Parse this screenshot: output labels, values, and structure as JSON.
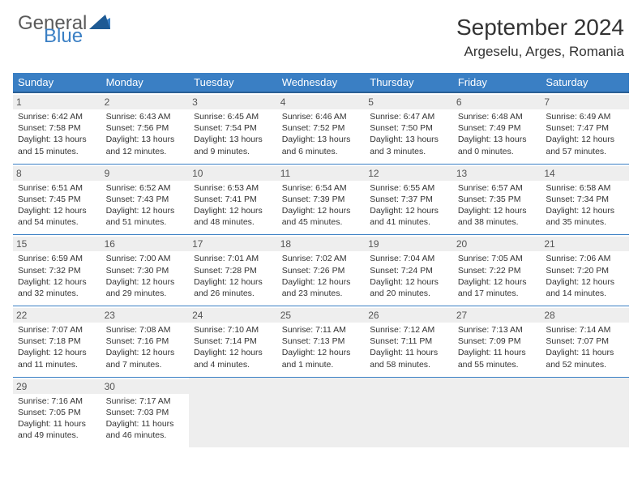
{
  "brand": {
    "line1": "General",
    "line2": "Blue"
  },
  "title": "September 2024",
  "location": "Argeselu, Arges, Romania",
  "colors": {
    "header_bg": "#3a7fc4",
    "header_border": "#2a5f94",
    "daynum_bg": "#eeeeee",
    "text": "#333333",
    "brand_gray": "#5a5a5a",
    "brand_blue": "#3a7fc4"
  },
  "weekdays": [
    "Sunday",
    "Monday",
    "Tuesday",
    "Wednesday",
    "Thursday",
    "Friday",
    "Saturday"
  ],
  "cells": [
    {
      "n": "1",
      "sr": "6:42 AM",
      "ss": "7:58 PM",
      "dl": "13 hours and 15 minutes."
    },
    {
      "n": "2",
      "sr": "6:43 AM",
      "ss": "7:56 PM",
      "dl": "13 hours and 12 minutes."
    },
    {
      "n": "3",
      "sr": "6:45 AM",
      "ss": "7:54 PM",
      "dl": "13 hours and 9 minutes."
    },
    {
      "n": "4",
      "sr": "6:46 AM",
      "ss": "7:52 PM",
      "dl": "13 hours and 6 minutes."
    },
    {
      "n": "5",
      "sr": "6:47 AM",
      "ss": "7:50 PM",
      "dl": "13 hours and 3 minutes."
    },
    {
      "n": "6",
      "sr": "6:48 AM",
      "ss": "7:49 PM",
      "dl": "13 hours and 0 minutes."
    },
    {
      "n": "7",
      "sr": "6:49 AM",
      "ss": "7:47 PM",
      "dl": "12 hours and 57 minutes."
    },
    {
      "n": "8",
      "sr": "6:51 AM",
      "ss": "7:45 PM",
      "dl": "12 hours and 54 minutes."
    },
    {
      "n": "9",
      "sr": "6:52 AM",
      "ss": "7:43 PM",
      "dl": "12 hours and 51 minutes."
    },
    {
      "n": "10",
      "sr": "6:53 AM",
      "ss": "7:41 PM",
      "dl": "12 hours and 48 minutes."
    },
    {
      "n": "11",
      "sr": "6:54 AM",
      "ss": "7:39 PM",
      "dl": "12 hours and 45 minutes."
    },
    {
      "n": "12",
      "sr": "6:55 AM",
      "ss": "7:37 PM",
      "dl": "12 hours and 41 minutes."
    },
    {
      "n": "13",
      "sr": "6:57 AM",
      "ss": "7:35 PM",
      "dl": "12 hours and 38 minutes."
    },
    {
      "n": "14",
      "sr": "6:58 AM",
      "ss": "7:34 PM",
      "dl": "12 hours and 35 minutes."
    },
    {
      "n": "15",
      "sr": "6:59 AM",
      "ss": "7:32 PM",
      "dl": "12 hours and 32 minutes."
    },
    {
      "n": "16",
      "sr": "7:00 AM",
      "ss": "7:30 PM",
      "dl": "12 hours and 29 minutes."
    },
    {
      "n": "17",
      "sr": "7:01 AM",
      "ss": "7:28 PM",
      "dl": "12 hours and 26 minutes."
    },
    {
      "n": "18",
      "sr": "7:02 AM",
      "ss": "7:26 PM",
      "dl": "12 hours and 23 minutes."
    },
    {
      "n": "19",
      "sr": "7:04 AM",
      "ss": "7:24 PM",
      "dl": "12 hours and 20 minutes."
    },
    {
      "n": "20",
      "sr": "7:05 AM",
      "ss": "7:22 PM",
      "dl": "12 hours and 17 minutes."
    },
    {
      "n": "21",
      "sr": "7:06 AM",
      "ss": "7:20 PM",
      "dl": "12 hours and 14 minutes."
    },
    {
      "n": "22",
      "sr": "7:07 AM",
      "ss": "7:18 PM",
      "dl": "12 hours and 11 minutes."
    },
    {
      "n": "23",
      "sr": "7:08 AM",
      "ss": "7:16 PM",
      "dl": "12 hours and 7 minutes."
    },
    {
      "n": "24",
      "sr": "7:10 AM",
      "ss": "7:14 PM",
      "dl": "12 hours and 4 minutes."
    },
    {
      "n": "25",
      "sr": "7:11 AM",
      "ss": "7:13 PM",
      "dl": "12 hours and 1 minute."
    },
    {
      "n": "26",
      "sr": "7:12 AM",
      "ss": "7:11 PM",
      "dl": "11 hours and 58 minutes."
    },
    {
      "n": "27",
      "sr": "7:13 AM",
      "ss": "7:09 PM",
      "dl": "11 hours and 55 minutes."
    },
    {
      "n": "28",
      "sr": "7:14 AM",
      "ss": "7:07 PM",
      "dl": "11 hours and 52 minutes."
    },
    {
      "n": "29",
      "sr": "7:16 AM",
      "ss": "7:05 PM",
      "dl": "11 hours and 49 minutes."
    },
    {
      "n": "30",
      "sr": "7:17 AM",
      "ss": "7:03 PM",
      "dl": "11 hours and 46 minutes."
    }
  ],
  "labels": {
    "sunrise": "Sunrise:",
    "sunset": "Sunset:",
    "daylight": "Daylight:"
  },
  "layout": {
    "start_weekday": 0,
    "days_in_month": 30,
    "cols": 7
  }
}
